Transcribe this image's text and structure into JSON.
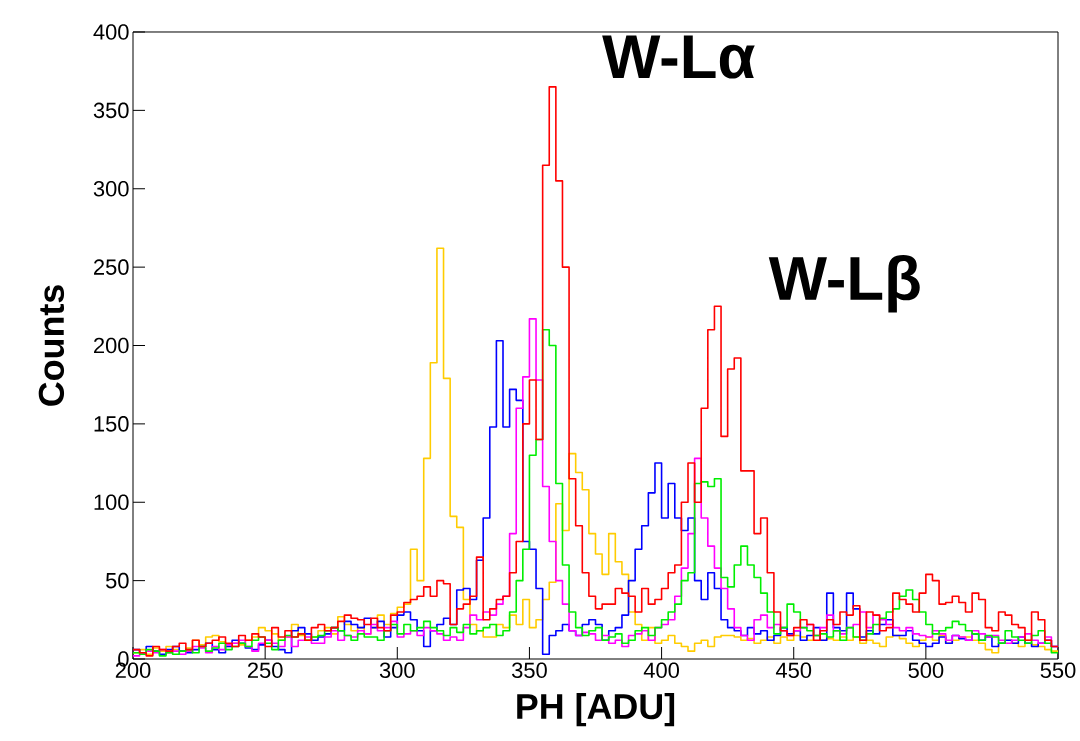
{
  "chart_data": {
    "type": "histogram",
    "xlabel": "PH [ADU]",
    "ylabel": "Counts",
    "annotations": [
      "W-Lα",
      "W-Lβ"
    ],
    "xlim": [
      200,
      550
    ],
    "ylim": [
      0,
      400
    ],
    "xticks": [
      200,
      250,
      300,
      350,
      400,
      450,
      500,
      550
    ],
    "yticks": [
      0,
      50,
      100,
      150,
      200,
      250,
      300,
      350,
      400
    ],
    "bins": [
      200,
      202.5,
      205,
      207.5,
      210,
      212.5,
      215,
      217.5,
      220,
      222.5,
      225,
      227.5,
      230,
      232.5,
      235,
      237.5,
      240,
      242.5,
      245,
      247.5,
      250,
      252.5,
      255,
      257.5,
      260,
      262.5,
      265,
      267.5,
      270,
      272.5,
      275,
      277.5,
      280,
      282.5,
      285,
      287.5,
      290,
      292.5,
      295,
      297.5,
      300,
      302.5,
      305,
      307.5,
      310,
      312.5,
      315,
      317.5,
      320,
      322.5,
      325,
      327.5,
      330,
      332.5,
      335,
      337.5,
      340,
      342.5,
      345,
      347.5,
      350,
      352.5,
      355,
      357.5,
      360,
      362.5,
      365,
      367.5,
      370,
      372.5,
      375,
      377.5,
      380,
      382.5,
      385,
      387.5,
      390,
      392.5,
      395,
      397.5,
      400,
      402.5,
      405,
      407.5,
      410,
      412.5,
      415,
      417.5,
      420,
      422.5,
      425,
      427.5,
      430,
      432.5,
      435,
      437.5,
      440,
      442.5,
      445,
      447.5,
      450,
      452.5,
      455,
      457.5,
      460,
      462.5,
      465,
      467.5,
      470,
      472.5,
      475,
      477.5,
      480,
      482.5,
      485,
      487.5,
      490,
      492.5,
      495,
      497.5,
      500,
      502.5,
      505,
      507.5,
      510,
      512.5,
      515,
      517.5,
      520,
      522.5,
      525,
      527.5,
      530,
      532.5,
      535,
      537.5,
      540,
      542.5,
      545,
      547.5,
      550
    ],
    "series": [
      {
        "color": "#ffcc00",
        "values": [
          4,
          6,
          3,
          7,
          5,
          8,
          6,
          5,
          7,
          12,
          9,
          14,
          15,
          11,
          8,
          10,
          9,
          12,
          14,
          20,
          18,
          16,
          12,
          14,
          22,
          15,
          12,
          14,
          18,
          20,
          16,
          27,
          22,
          18,
          20,
          16,
          20,
          28,
          22,
          29,
          33,
          35,
          70,
          50,
          128,
          189,
          262,
          179,
          91,
          84,
          38,
          22,
          18,
          14,
          14,
          22,
          20,
          28,
          22,
          38,
          20,
          25,
          38,
          49,
          99,
          82,
          131,
          119,
          108,
          80,
          67,
          54,
          80,
          62,
          54,
          30,
          22,
          12,
          20,
          10,
          12,
          15,
          10,
          8,
          5,
          10,
          12,
          8,
          14,
          15,
          15,
          14,
          12,
          13,
          10,
          12,
          14,
          10,
          14,
          12,
          15,
          14,
          12,
          15,
          12,
          13,
          12,
          14,
          12,
          14,
          10,
          12,
          10,
          8,
          14,
          15,
          13,
          10,
          8,
          12,
          14,
          12,
          15,
          10,
          12,
          14,
          14,
          12,
          10,
          6,
          4,
          10,
          12,
          10,
          8,
          12,
          9,
          8,
          6,
          5
        ]
      },
      {
        "color": "#0000ff",
        "values": [
          6,
          4,
          8,
          5,
          3,
          6,
          8,
          5,
          4,
          6,
          8,
          10,
          6,
          4,
          8,
          12,
          10,
          7,
          6,
          9,
          12,
          8,
          6,
          4,
          18,
          20,
          16,
          12,
          14,
          16,
          20,
          18,
          24,
          22,
          20,
          26,
          20,
          24,
          14,
          20,
          28,
          30,
          25,
          18,
          8,
          18,
          22,
          26,
          22,
          44,
          45,
          38,
          63,
          90,
          148,
          203,
          148,
          172,
          165,
          75,
          70,
          45,
          3,
          15,
          18,
          22,
          18,
          15,
          22,
          25,
          22,
          12,
          18,
          20,
          28,
          50,
          70,
          85,
          106,
          125,
          90,
          112,
          90,
          82,
          90,
          50,
          38,
          55,
          45,
          25,
          20,
          18,
          15,
          20,
          16,
          18,
          12,
          15,
          20,
          16,
          18,
          12,
          15,
          20,
          12,
          42,
          20,
          18,
          42,
          32,
          14,
          18,
          16,
          22,
          25,
          15,
          15,
          18,
          12,
          10,
          8,
          10,
          14,
          10,
          15,
          13,
          12,
          16,
          12,
          14,
          8,
          10,
          12,
          10,
          14,
          10,
          8,
          10,
          12,
          8
        ]
      },
      {
        "color": "#ff00ff",
        "values": [
          2,
          3,
          5,
          4,
          6,
          4,
          5,
          3,
          5,
          8,
          7,
          4,
          8,
          6,
          9,
          10,
          12,
          8,
          5,
          10,
          12,
          10,
          8,
          14,
          8,
          12,
          14,
          10,
          10,
          14,
          18,
          12,
          15,
          14,
          18,
          16,
          22,
          18,
          20,
          24,
          14,
          16,
          18,
          15,
          20,
          18,
          16,
          12,
          14,
          12,
          20,
          28,
          25,
          30,
          28,
          35,
          40,
          80,
          160,
          180,
          217,
          178,
          110,
          75,
          50,
          35,
          18,
          15,
          17,
          16,
          12,
          15,
          10,
          12,
          8,
          15,
          16,
          18,
          12,
          20,
          22,
          25,
          40,
          58,
          80,
          128,
          90,
          72,
          58,
          45,
          32,
          20,
          15,
          12,
          25,
          28,
          20,
          22,
          18,
          15,
          18,
          20,
          22,
          15,
          20,
          28,
          18,
          16,
          20,
          22,
          30,
          20,
          28,
          25,
          22,
          20,
          18,
          20,
          16,
          15,
          14,
          18,
          16,
          12,
          15,
          14,
          12,
          18,
          16,
          14,
          15,
          12,
          10,
          12,
          14,
          16,
          12,
          10,
          14,
          8
        ]
      },
      {
        "color": "#00ee00",
        "values": [
          4,
          3,
          6,
          5,
          2,
          4,
          3,
          5,
          6,
          4,
          8,
          5,
          7,
          10,
          6,
          8,
          10,
          8,
          12,
          14,
          10,
          6,
          12,
          15,
          14,
          16,
          12,
          14,
          15,
          18,
          20,
          18,
          15,
          12,
          16,
          14,
          14,
          12,
          18,
          22,
          16,
          22,
          18,
          20,
          24,
          20,
          18,
          15,
          20,
          17,
          22,
          16,
          18,
          20,
          22,
          15,
          18,
          30,
          50,
          70,
          130,
          140,
          210,
          200,
          112,
          60,
          30,
          20,
          15,
          18,
          20,
          12,
          14,
          16,
          10,
          12,
          18,
          20,
          15,
          20,
          25,
          30,
          35,
          50,
          55,
          112,
          113,
          110,
          115,
          52,
          46,
          60,
          72,
          60,
          52,
          42,
          30,
          16,
          20,
          35,
          30,
          20,
          18,
          15,
          16,
          14,
          18,
          12,
          20,
          14,
          12,
          16,
          22,
          26,
          30,
          32,
          40,
          44,
          38,
          30,
          22,
          16,
          18,
          20,
          24,
          22,
          18,
          16,
          12,
          15,
          14,
          10,
          18,
          14,
          12,
          10,
          15,
          18,
          10,
          4
        ]
      },
      {
        "color": "#ff0000",
        "values": [
          6,
          4,
          2,
          8,
          6,
          5,
          8,
          10,
          6,
          12,
          8,
          10,
          12,
          14,
          10,
          8,
          15,
          12,
          16,
          14,
          8,
          20,
          14,
          18,
          14,
          16,
          12,
          20,
          22,
          18,
          20,
          24,
          28,
          26,
          25,
          22,
          26,
          20,
          18,
          28,
          30,
          36,
          38,
          40,
          46,
          40,
          50,
          48,
          22,
          32,
          35,
          40,
          65,
          25,
          32,
          38,
          40,
          55,
          75,
          150,
          178,
          140,
          315,
          365,
          305,
          250,
          115,
          85,
          55,
          40,
          32,
          35,
          35,
          45,
          42,
          40,
          30,
          45,
          35,
          38,
          45,
          55,
          60,
          100,
          125,
          100,
          160,
          210,
          225,
          142,
          185,
          192,
          120,
          120,
          80,
          90,
          55,
          30,
          18,
          15,
          20,
          25,
          22,
          12,
          18,
          25,
          22,
          30,
          28,
          34,
          12,
          30,
          28,
          18,
          20,
          42,
          38,
          35,
          30,
          42,
          54,
          50,
          35,
          36,
          40,
          36,
          30,
          42,
          38,
          20,
          18,
          30,
          28,
          22,
          20,
          12,
          30,
          25,
          12,
          8
        ]
      }
    ]
  }
}
